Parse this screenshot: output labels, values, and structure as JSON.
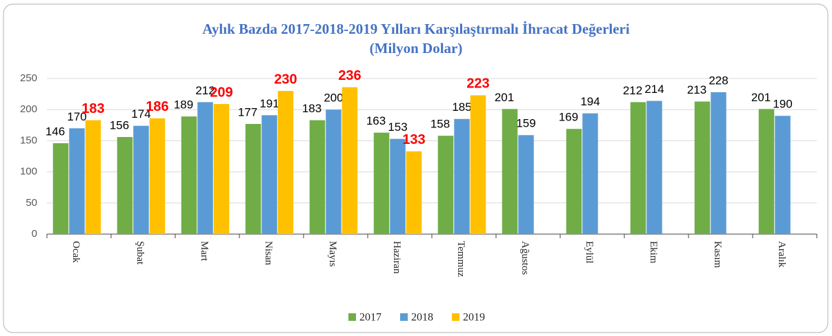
{
  "chart_data": {
    "type": "bar",
    "title": "Aylık Bazda 2017-2018-2019 Yılları Karşılaştırmalı İhracat Değerleri",
    "subtitle": "(Milyon Dolar)",
    "categories": [
      "Ocak",
      "Şubat",
      "Mart",
      "Nisan",
      "Mayıs",
      "Haziran",
      "Temmuz",
      "Ağustos",
      "Eylül",
      "Ekim",
      "Kasım",
      "Aralık"
    ],
    "series": [
      {
        "name": "2017",
        "color": "#70ad47",
        "values": [
          146,
          156,
          189,
          177,
          183,
          163,
          158,
          201,
          169,
          212,
          213,
          201
        ]
      },
      {
        "name": "2018",
        "color": "#5b9bd5",
        "values": [
          170,
          174,
          212,
          191,
          200,
          153,
          185,
          159,
          194,
          214,
          228,
          190
        ]
      },
      {
        "name": "2019",
        "color": "#ffc000",
        "values": [
          183,
          186,
          209,
          230,
          236,
          133,
          223,
          null,
          null,
          null,
          null,
          null
        ]
      }
    ],
    "ylim": [
      0,
      250
    ],
    "yticks": [
      0,
      50,
      100,
      150,
      200,
      250
    ],
    "grid": true,
    "legend": "bottom"
  }
}
